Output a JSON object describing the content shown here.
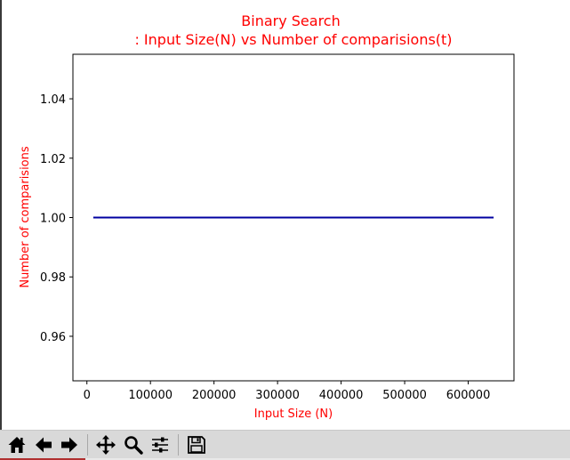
{
  "chart_data": {
    "type": "line",
    "title": "Binary Search\n: Input Size(N) vs Number of comparisions(t)",
    "title_lines": [
      "Binary Search",
      ": Input Size(N) vs Number of comparisions(t)"
    ],
    "xlabel": "Input Size (N)",
    "ylabel": "Number of comparisions",
    "x": [
      10000,
      640000
    ],
    "series": [
      {
        "values": [
          1.0,
          1.0
        ],
        "color": "#0000a0"
      }
    ],
    "xlim": [
      -22000,
      672000
    ],
    "ylim": [
      0.945,
      1.055
    ],
    "xticks": [
      0,
      100000,
      200000,
      300000,
      400000,
      500000,
      600000
    ],
    "yticks": [
      0.96,
      0.98,
      1.0,
      1.02,
      1.04
    ],
    "xtick_labels": [
      "0",
      "100000",
      "200000",
      "300000",
      "400000",
      "500000",
      "600000"
    ],
    "ytick_labels": [
      "0.96",
      "0.98",
      "1.00",
      "1.02",
      "1.04"
    ],
    "grid": false,
    "label_color": "#ff0000"
  },
  "toolbar": {
    "buttons": [
      {
        "name": "home-button",
        "icon": "home-icon"
      },
      {
        "name": "back-button",
        "icon": "arrow-left-icon"
      },
      {
        "name": "forward-button",
        "icon": "arrow-right-icon"
      },
      {
        "name": "pan-button",
        "icon": "move-icon"
      },
      {
        "name": "zoom-button",
        "icon": "magnifier-icon"
      },
      {
        "name": "configure-subplots-button",
        "icon": "sliders-icon"
      },
      {
        "name": "save-button",
        "icon": "floppy-disk-icon"
      }
    ]
  }
}
